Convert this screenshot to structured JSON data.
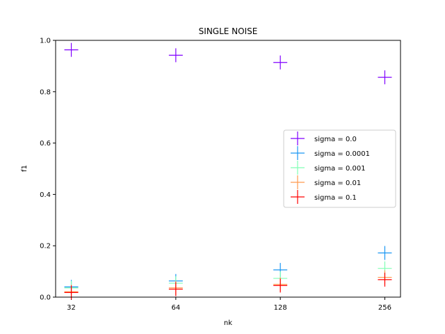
{
  "chart_data": {
    "type": "scatter",
    "title": "SINGLE NOISE",
    "xlabel": "nk",
    "ylabel": "f1",
    "x_scale": "log2",
    "categories": [
      "32",
      "64",
      "128",
      "256"
    ],
    "x": [
      32,
      64,
      128,
      256
    ],
    "ylim": [
      0.0,
      1.0
    ],
    "yticks": [
      "0.0",
      "0.2",
      "0.4",
      "0.6",
      "0.8",
      "1.0"
    ],
    "marker": "+",
    "grid": false,
    "legend_position": "center-right",
    "series": [
      {
        "name": "sigma = 0.0",
        "color": "#8000ff",
        "values": [
          0.963,
          0.942,
          0.914,
          0.856
        ]
      },
      {
        "name": "sigma = 0.0001",
        "color": "#1996f3",
        "values": [
          0.04,
          0.063,
          0.106,
          0.172
        ]
      },
      {
        "name": "sigma = 0.001",
        "color": "#80ffb4",
        "values": [
          0.036,
          0.054,
          0.073,
          0.112
        ]
      },
      {
        "name": "sigma = 0.01",
        "color": "#ff9a4e",
        "values": [
          0.021,
          0.036,
          0.05,
          0.077
        ]
      },
      {
        "name": "sigma = 0.1",
        "color": "#ff0000",
        "values": [
          0.018,
          0.031,
          0.045,
          0.068
        ]
      }
    ]
  }
}
